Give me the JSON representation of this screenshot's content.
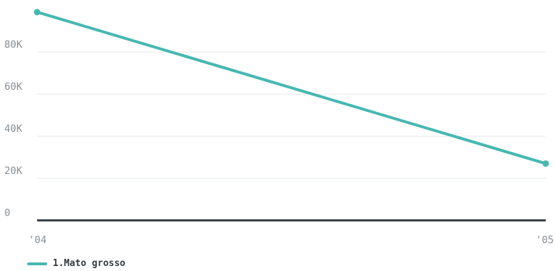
{
  "chart_data": {
    "type": "line",
    "x": [
      "'04",
      "'05"
    ],
    "series": [
      {
        "name": "1.Mato grosso",
        "values": [
          99000,
          27000
        ],
        "color": "#46b8b0"
      }
    ],
    "ylim": [
      0,
      100000
    ],
    "yticks": [
      0,
      20000,
      40000,
      60000,
      80000
    ],
    "ytick_labels": [
      "0",
      "20K",
      "40K",
      "60K",
      "80K"
    ],
    "grid": true,
    "legend_position": "bottom-left",
    "title": "",
    "xlabel": "",
    "ylabel": ""
  },
  "legend": {
    "label": "1.Mato grosso",
    "color": "#46b8b0"
  }
}
